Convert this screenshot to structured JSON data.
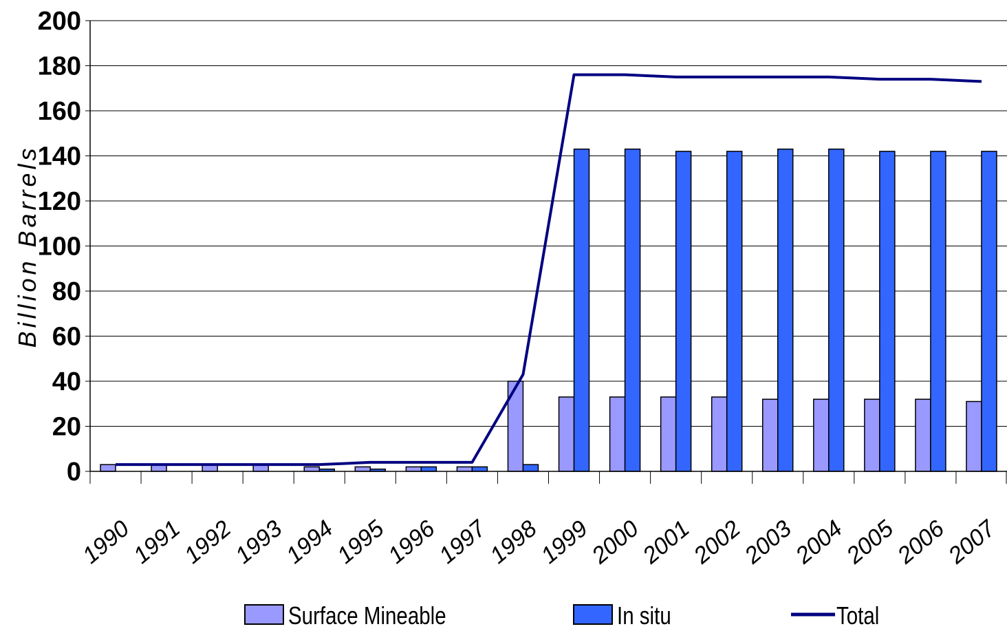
{
  "chart_data": {
    "type": "bar",
    "title": "",
    "xlabel": "",
    "ylabel": "Billion Barrels",
    "ylim": [
      0,
      200
    ],
    "yticks": [
      0,
      20,
      40,
      60,
      80,
      100,
      120,
      140,
      160,
      180,
      200
    ],
    "categories": [
      "1990",
      "1991",
      "1992",
      "1993",
      "1994",
      "1995",
      "1996",
      "1997",
      "1998",
      "1999",
      "2000",
      "2001",
      "2002",
      "2003",
      "2004",
      "2005",
      "2006",
      "2007"
    ],
    "series": [
      {
        "name": "Surface Mineable",
        "kind": "bar",
        "color": "#9999ff",
        "values": [
          3,
          3,
          3,
          3,
          2,
          2,
          2,
          2,
          40,
          33,
          33,
          33,
          33,
          32,
          32,
          32,
          32,
          31
        ]
      },
      {
        "name": "In situ",
        "kind": "bar",
        "color": "#3366ff",
        "values": [
          0,
          0,
          0,
          0,
          1,
          1,
          2,
          2,
          3,
          143,
          143,
          142,
          142,
          143,
          143,
          142,
          142,
          142
        ]
      },
      {
        "name": "Total",
        "kind": "line",
        "color": "#000080",
        "values": [
          3,
          3,
          3,
          3,
          3,
          4,
          4,
          4,
          43,
          176,
          176,
          175,
          175,
          175,
          175,
          174,
          174,
          173
        ]
      }
    ],
    "grid": true,
    "legend": "bottom"
  }
}
